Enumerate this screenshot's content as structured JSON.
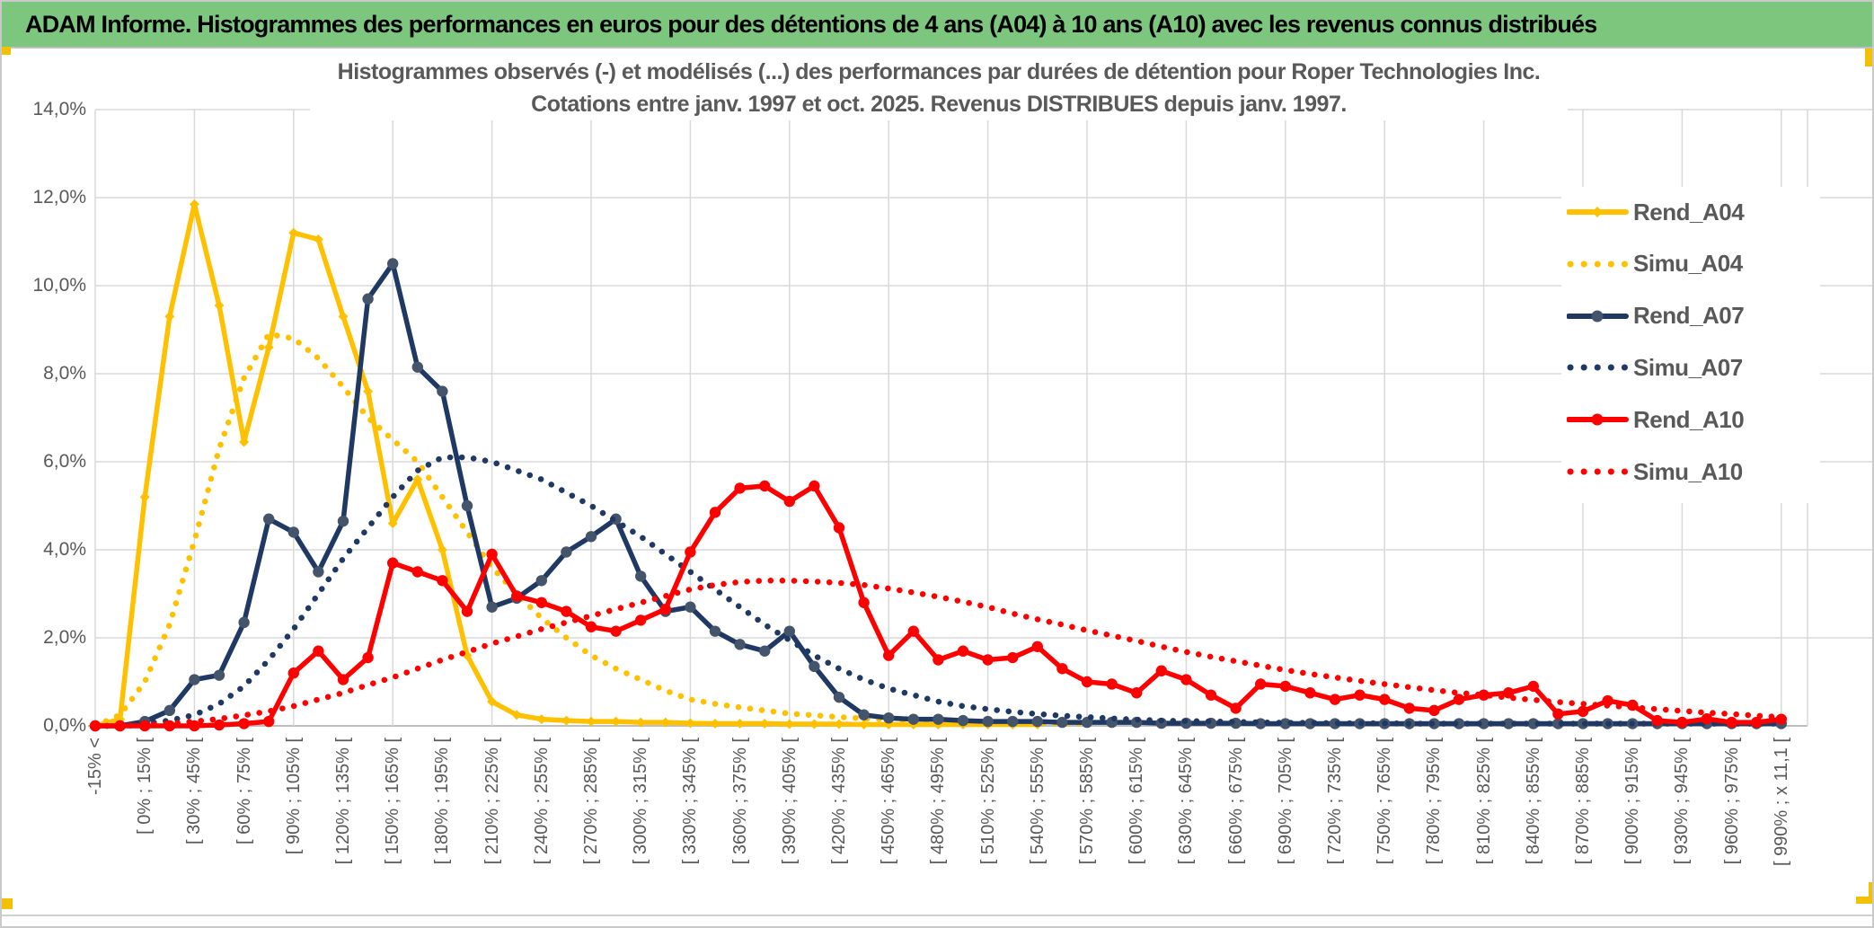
{
  "header": {
    "title": "ADAM Informe. Histogrammes des performances en euros pour des détentions de 4 ans (A04) à 10 ans (A10) avec les revenus connus distribués"
  },
  "chart_data": {
    "type": "line",
    "title_line1": "Histogrammes observés (-) et modélisés (...) des performances par durées de détention pour Roper Technologies Inc.",
    "title_line2": "Cotations entre janv. 1997 et oct. 2025. Revenus DISTRIBUES depuis janv. 1997.",
    "ylabel": "",
    "xlabel": "",
    "ylim": [
      0,
      14
    ],
    "grid": true,
    "legend_position": "right",
    "y_tick_labels": [
      "14,0%",
      "12,0%",
      "10,0%",
      "8,0%",
      "6,0%",
      "4,0%",
      "2,0%",
      "0,0%"
    ],
    "x_tick_labels": [
      "-15% <",
      "[ 0% ; 15% [",
      "[ 30% ; 45% [",
      "[ 60% ; 75% [",
      "[ 90% ; 105% [",
      "[ 120% ; 135% [",
      "[ 150% ; 165% [",
      "[ 180% ; 195% [",
      "[ 210% ; 225% [",
      "[ 240% ; 255% [",
      "[ 270% ; 285% [",
      "[ 300% ; 315% [",
      "[ 330% ; 345% [",
      "[ 360% ; 375% [",
      "[ 390% ; 405% [",
      "[ 420% ; 435% [",
      "[ 450% ; 465% [",
      "[ 480% ; 495% [",
      "[ 510% ; 525% [",
      "[ 540% ; 555% [",
      "[ 570% ; 585% [",
      "[ 600% ; 615% [",
      "[ 630% ; 645% [",
      "[ 660% ; 675% [",
      "[ 690% ; 705% [",
      "[ 720% ; 735% [",
      "[ 750% ; 765% [",
      "[ 780% ; 795% [",
      "[ 810% ; 825% [",
      "[ 840% ; 855% [",
      "[ 870% ; 885% [",
      "[ 900% ; 915% [",
      "[ 930% ; 945% [",
      "[ 960% ; 975% [",
      "[ 990% ; x 11,1 ["
    ],
    "bins_per_label": 2,
    "series": [
      {
        "name": "Rend_A04",
        "style": "solid",
        "color": "#FFC000",
        "marker": "diamond",
        "marker_color": "#FFC000",
        "values": [
          0,
          0.15,
          5.2,
          9.3,
          11.85,
          9.55,
          6.45,
          8.6,
          11.2,
          11.05,
          9.3,
          7.6,
          4.6,
          5.6,
          4.0,
          1.6,
          0.55,
          0.25,
          0.15,
          0.12,
          0.1,
          0.1,
          0.08,
          0.08,
          0.06,
          0.05,
          0.05,
          0.05,
          0.04,
          0.04,
          0.04,
          0.03,
          0.03,
          0.03,
          0.03,
          0.03,
          0.03,
          0.03,
          0.03,
          null,
          null,
          null,
          null,
          null,
          null,
          null,
          null,
          null,
          null,
          null,
          null,
          null,
          null,
          null,
          null,
          null,
          null,
          null,
          null,
          null,
          null,
          null,
          null,
          null,
          null,
          null,
          null,
          null,
          null
        ]
      },
      {
        "name": "Simu_A04",
        "style": "dotted",
        "color": "#FFC000",
        "marker": "none",
        "values": [
          0,
          0.25,
          1.0,
          2.3,
          4.2,
          6.3,
          7.9,
          8.9,
          8.8,
          8.35,
          7.7,
          7.0,
          6.5,
          6.0,
          5.2,
          4.4,
          3.6,
          3.0,
          2.45,
          2.0,
          1.6,
          1.3,
          1.05,
          0.8,
          0.6,
          0.5,
          0.42,
          0.35,
          0.28,
          0.24,
          0.2,
          0.17,
          0.14,
          0.12,
          0.1,
          0.09,
          0.08,
          0.07,
          0.06,
          0.05,
          0.05,
          null,
          null,
          null,
          null,
          null,
          null,
          null,
          null,
          null,
          null,
          null,
          null,
          null,
          null,
          null,
          null,
          null,
          null,
          null,
          null,
          null,
          null,
          null,
          null,
          null,
          null,
          null,
          null
        ]
      },
      {
        "name": "Rend_A07",
        "style": "solid",
        "color": "#1F3864",
        "marker": "circle",
        "marker_color": "#44546A",
        "values": [
          0,
          0,
          0.1,
          0.35,
          1.05,
          1.15,
          2.35,
          4.7,
          4.4,
          3.5,
          4.65,
          9.7,
          10.5,
          8.15,
          7.6,
          5.0,
          2.7,
          2.9,
          3.3,
          3.95,
          4.3,
          4.7,
          3.4,
          2.6,
          2.7,
          2.15,
          1.85,
          1.7,
          2.15,
          1.35,
          0.65,
          0.25,
          0.18,
          0.15,
          0.15,
          0.12,
          0.1,
          0.1,
          0.1,
          0.08,
          0.08,
          0.08,
          0.08,
          0.06,
          0.06,
          0.06,
          0.06,
          0.05,
          0.05,
          0.05,
          0.05,
          0.05,
          0.05,
          0.05,
          0.05,
          0.05,
          0.05,
          0.05,
          0.05,
          0.05,
          0.05,
          0.05,
          0.05,
          0.05,
          0.05,
          0.05,
          0.05,
          0.05,
          0.05
        ]
      },
      {
        "name": "Simu_A07",
        "style": "dotted",
        "color": "#1F3864",
        "marker": "none",
        "values": [
          0,
          0,
          0.05,
          0.12,
          0.25,
          0.5,
          0.9,
          1.5,
          2.2,
          3.0,
          3.8,
          4.5,
          5.2,
          5.8,
          6.1,
          6.1,
          6.0,
          5.8,
          5.6,
          5.3,
          5.0,
          4.65,
          4.3,
          3.9,
          3.5,
          3.1,
          2.7,
          2.3,
          1.95,
          1.6,
          1.3,
          1.05,
          0.85,
          0.7,
          0.55,
          0.45,
          0.38,
          0.32,
          0.27,
          0.23,
          0.2,
          0.17,
          0.14,
          0.12,
          0.11,
          0.1,
          0.09,
          0.08,
          0.07,
          0.07,
          0.06,
          0.06,
          0.06,
          0.05,
          0.05,
          0.05,
          0.05,
          0.05,
          0.05,
          0.05,
          0.05,
          0.05,
          0.05,
          0.05,
          0.05,
          0.05,
          0.05,
          0.05,
          0.05
        ]
      },
      {
        "name": "Rend_A10",
        "style": "solid",
        "color": "#FF0000",
        "marker": "circle",
        "marker_color": "#FF0000",
        "values": [
          0,
          0,
          0,
          0,
          0,
          0.02,
          0.05,
          0.1,
          1.2,
          1.7,
          1.05,
          1.55,
          3.7,
          3.5,
          3.3,
          2.6,
          3.9,
          2.95,
          2.8,
          2.6,
          2.25,
          2.15,
          2.4,
          2.65,
          3.95,
          4.85,
          5.4,
          5.45,
          5.1,
          5.45,
          4.5,
          2.8,
          1.6,
          2.15,
          1.5,
          1.7,
          1.5,
          1.55,
          1.8,
          1.3,
          1.0,
          0.95,
          0.75,
          1.25,
          1.05,
          0.7,
          0.4,
          0.95,
          0.9,
          0.75,
          0.6,
          0.7,
          0.6,
          0.4,
          0.35,
          0.6,
          0.7,
          0.75,
          0.9,
          0.27,
          0.33,
          0.57,
          0.47,
          0.12,
          0.08,
          0.16,
          0.08,
          0.08,
          0.15
        ]
      },
      {
        "name": "Simu_A10",
        "style": "dotted",
        "color": "#FF0000",
        "marker": "none",
        "values": [
          0,
          0,
          0.02,
          0.05,
          0.1,
          0.16,
          0.24,
          0.33,
          0.45,
          0.6,
          0.75,
          0.93,
          1.1,
          1.3,
          1.5,
          1.68,
          1.87,
          2.03,
          2.2,
          2.35,
          2.5,
          2.65,
          2.8,
          2.95,
          3.1,
          3.2,
          3.27,
          3.3,
          3.3,
          3.28,
          3.25,
          3.2,
          3.12,
          3.03,
          2.93,
          2.82,
          2.7,
          2.55,
          2.42,
          2.3,
          2.17,
          2.05,
          1.93,
          1.8,
          1.68,
          1.57,
          1.47,
          1.37,
          1.27,
          1.18,
          1.1,
          1.02,
          0.95,
          0.88,
          0.81,
          0.75,
          0.7,
          0.64,
          0.59,
          0.54,
          0.5,
          0.46,
          0.42,
          0.38,
          0.34,
          0.3,
          0.27,
          0.23,
          0.2
        ]
      }
    ],
    "colors": {
      "grid": "#D9D9D9",
      "axis": "#BFBFBF",
      "text": "#595959",
      "header_green": "#7CC67E",
      "accent_gold": "#F2C102"
    }
  }
}
